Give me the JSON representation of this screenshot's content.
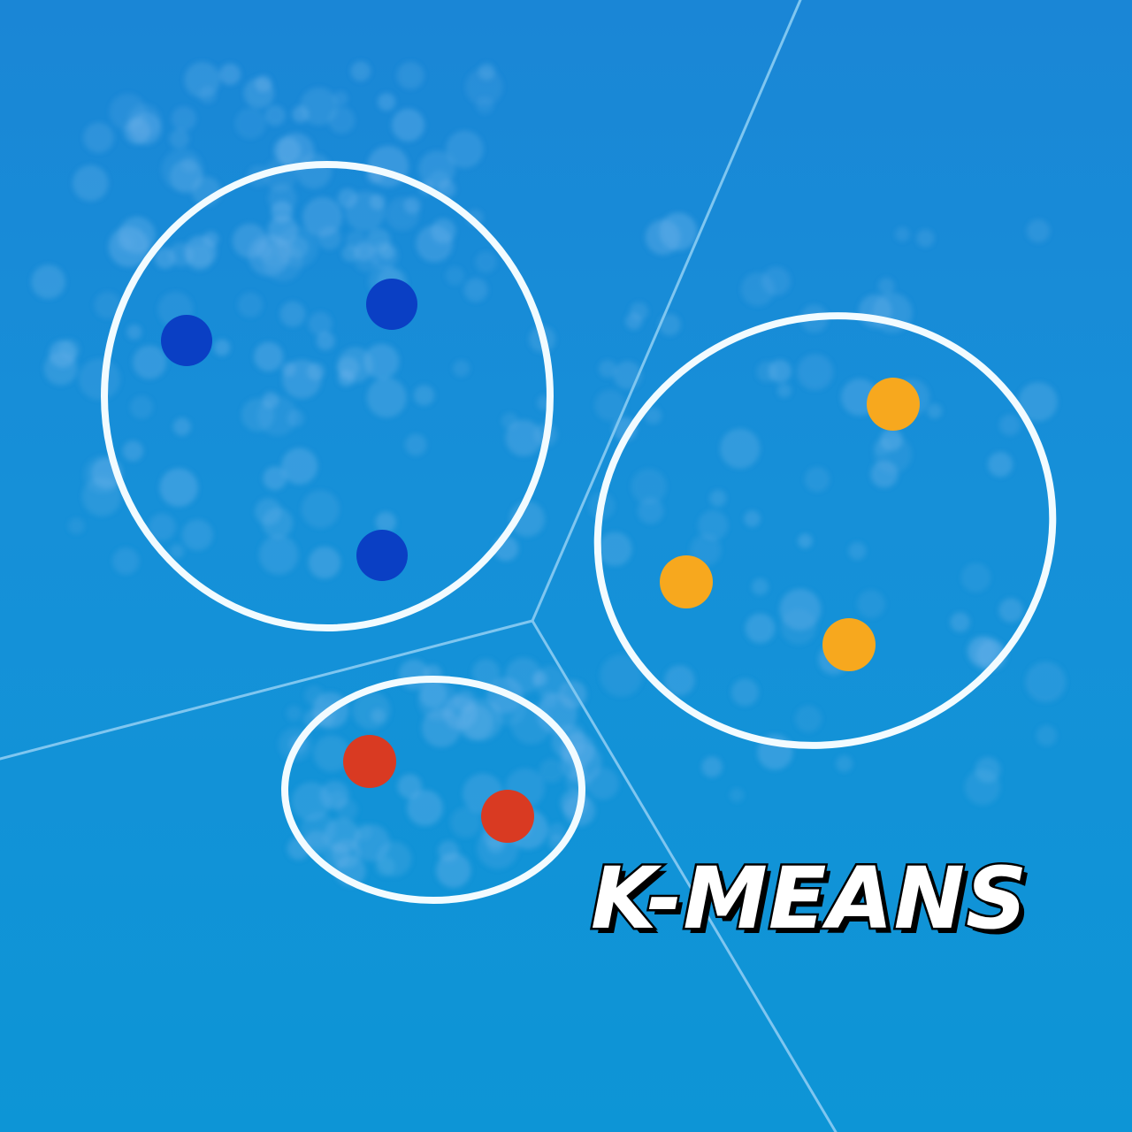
{
  "title": "K-MEANS",
  "colors": {
    "background": "#1690d8",
    "boundary": "#7fc6f0",
    "cluster_outline": "#f2fbff",
    "cluster_blue": "#0a3fc4",
    "cluster_orange": "#f7a81e",
    "cluster_red": "#d93a22"
  },
  "clusters": [
    {
      "name": "blue-cluster",
      "color": "#0a3fc4",
      "point_count": 3
    },
    {
      "name": "orange-cluster",
      "color": "#f7a81e",
      "point_count": 3
    },
    {
      "name": "red-cluster",
      "color": "#d93a22",
      "point_count": 2
    }
  ]
}
